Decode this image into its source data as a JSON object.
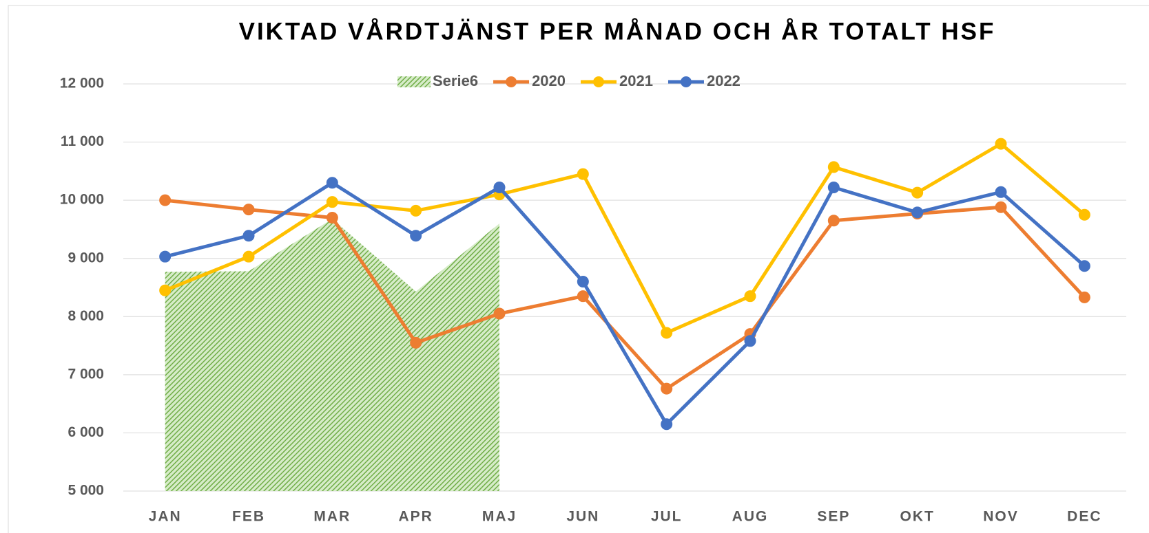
{
  "chart_data": {
    "type": "line",
    "title": "VIKTAD VÅRDTJÄNST PER MÅNAD OCH ÅR TOTALT HSF",
    "categories": [
      "JAN",
      "FEB",
      "MAR",
      "APR",
      "MAJ",
      "JUN",
      "JUL",
      "AUG",
      "SEP",
      "OKT",
      "NOV",
      "DEC"
    ],
    "series": [
      {
        "name": "Serie6",
        "type": "area",
        "color": "#70ad47",
        "values": [
          8770,
          8780,
          9680,
          8430,
          9600,
          null,
          null,
          null,
          null,
          null,
          null,
          null
        ]
      },
      {
        "name": "2020",
        "color": "#ed7d31",
        "values": [
          10000,
          9840,
          9700,
          7550,
          8050,
          8350,
          6760,
          7700,
          9650,
          9770,
          9880,
          8330
        ]
      },
      {
        "name": "2021",
        "color": "#ffc000",
        "values": [
          8450,
          9030,
          9970,
          9820,
          10100,
          10450,
          7720,
          8350,
          10570,
          10130,
          10970,
          9750
        ]
      },
      {
        "name": "2022",
        "color": "#4472c4",
        "values": [
          9030,
          9390,
          10300,
          9390,
          10220,
          8600,
          6150,
          7580,
          10220,
          9790,
          10140,
          8870
        ]
      }
    ],
    "ylim": [
      5000,
      12000
    ],
    "yticks": [
      {
        "value": 5000,
        "label": "5 000"
      },
      {
        "value": 6000,
        "label": "6 000"
      },
      {
        "value": 7000,
        "label": "7 000"
      },
      {
        "value": 8000,
        "label": "8 000"
      },
      {
        "value": 9000,
        "label": "9 000"
      },
      {
        "value": 10000,
        "label": "10 000"
      },
      {
        "value": 11000,
        "label": "11 000"
      },
      {
        "value": 12000,
        "label": "12 000"
      }
    ],
    "grid": true,
    "legend": "top"
  }
}
